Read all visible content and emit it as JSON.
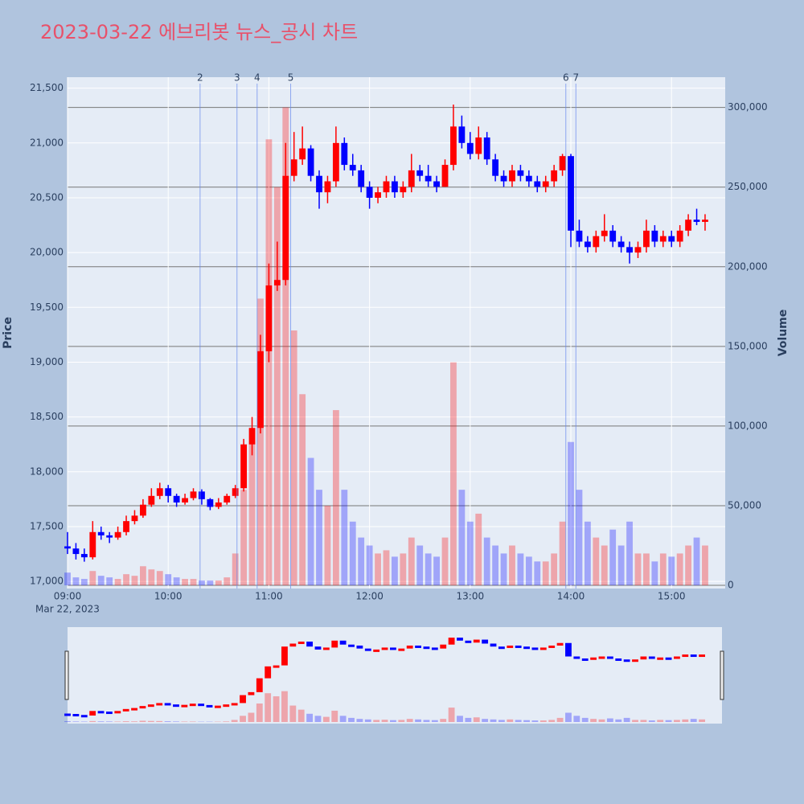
{
  "chart_data": {
    "type": "candlestick",
    "title": "2023-03-22 에브리봇 뉴스_공시 차트",
    "ylabel": "Price",
    "y2label": "Volume",
    "x_date_label": "Mar 22, 2023",
    "increasing_color": "#ff0000",
    "decreasing_color": "#0000ff",
    "xlim": [
      "09:00",
      "15:32"
    ],
    "xticks": [
      "09:00",
      "10:00",
      "11:00",
      "12:00",
      "13:00",
      "14:00",
      "15:00"
    ],
    "ylim": [
      16935,
      21600
    ],
    "yticks": [
      {
        "value": 17000,
        "label": "17,000"
      },
      {
        "value": 17500,
        "label": "17,500"
      },
      {
        "value": 18000,
        "label": "18,000"
      },
      {
        "value": 18500,
        "label": "18,500"
      },
      {
        "value": 19000,
        "label": "19,000"
      },
      {
        "value": 19500,
        "label": "19,500"
      },
      {
        "value": 20000,
        "label": "20,000"
      },
      {
        "value": 20500,
        "label": "20,500"
      },
      {
        "value": 21000,
        "label": "21,000"
      },
      {
        "value": 21500,
        "label": "21,500"
      }
    ],
    "y2lim": [
      -2000,
      319000
    ],
    "y2ticks": [
      0,
      {
        "value": 50000,
        "label": "50,000"
      },
      {
        "value": 100000,
        "label": "100,000"
      },
      {
        "value": 150000,
        "label": "150,000"
      },
      {
        "value": 200000,
        "label": "200,000"
      },
      {
        "value": 250000,
        "label": "250,000"
      },
      {
        "value": 300000,
        "label": "300,000"
      }
    ],
    "events": [
      {
        "x": "10:19",
        "label": "2"
      },
      {
        "x": "10:41",
        "label": "3"
      },
      {
        "x": "10:53",
        "label": "4"
      },
      {
        "x": "11:13",
        "label": "5"
      },
      {
        "x": "13:57",
        "label": "6"
      },
      {
        "x": "14:03",
        "label": "7"
      }
    ],
    "x": [
      "09:00",
      "09:05",
      "09:10",
      "09:15",
      "09:20",
      "09:25",
      "09:30",
      "09:35",
      "09:40",
      "09:45",
      "09:50",
      "09:55",
      "10:00",
      "10:05",
      "10:10",
      "10:15",
      "10:20",
      "10:25",
      "10:30",
      "10:35",
      "10:40",
      "10:45",
      "10:50",
      "10:55",
      "11:00",
      "11:05",
      "11:10",
      "11:15",
      "11:20",
      "11:25",
      "11:30",
      "11:35",
      "11:40",
      "11:45",
      "11:50",
      "11:55",
      "12:00",
      "12:05",
      "12:10",
      "12:15",
      "12:20",
      "12:25",
      "12:30",
      "12:35",
      "12:40",
      "12:45",
      "12:50",
      "12:55",
      "13:00",
      "13:05",
      "13:10",
      "13:15",
      "13:20",
      "13:25",
      "13:30",
      "13:35",
      "13:40",
      "13:45",
      "13:50",
      "13:55",
      "14:00",
      "14:05",
      "14:10",
      "14:15",
      "14:20",
      "14:25",
      "14:30",
      "14:35",
      "14:40",
      "14:45",
      "14:50",
      "14:55",
      "15:00",
      "15:05",
      "15:10",
      "15:15",
      "15:20"
    ],
    "open": [
      17320,
      17300,
      17250,
      17220,
      17450,
      17420,
      17400,
      17450,
      17550,
      17600,
      17700,
      17780,
      17850,
      17780,
      17720,
      17760,
      17820,
      17750,
      17680,
      17720,
      17780,
      17850,
      18250,
      18400,
      19100,
      19700,
      19750,
      20700,
      20850,
      20950,
      20700,
      20550,
      20650,
      21000,
      20800,
      20750,
      20600,
      20500,
      20550,
      20650,
      20550,
      20600,
      20750,
      20700,
      20650,
      20600,
      20800,
      21150,
      21000,
      20900,
      21050,
      20850,
      20700,
      20650,
      20750,
      20700,
      20650,
      20600,
      20650,
      20750,
      20880,
      20200,
      20100,
      20050,
      20150,
      20200,
      20100,
      20050,
      20000,
      20050,
      20200,
      20100,
      20150,
      20100,
      20200,
      20300,
      20280
    ],
    "high": [
      17450,
      17350,
      17300,
      17550,
      17500,
      17450,
      17500,
      17600,
      17650,
      17750,
      17850,
      17900,
      17880,
      17800,
      17800,
      17850,
      17840,
      17760,
      17760,
      17800,
      17880,
      18300,
      18500,
      19250,
      19900,
      20100,
      21000,
      21100,
      21150,
      20980,
      20750,
      20700,
      21150,
      21050,
      20900,
      20800,
      20650,
      20600,
      20700,
      20700,
      20650,
      20900,
      20800,
      20800,
      20700,
      20850,
      21350,
      21250,
      21100,
      21150,
      21100,
      20900,
      20750,
      20800,
      20800,
      20750,
      20700,
      20700,
      20800,
      20900,
      20900,
      20300,
      20150,
      20200,
      20350,
      20250,
      20150,
      20100,
      20100,
      20300,
      20250,
      20200,
      20200,
      20250,
      20350,
      20400,
      20350
    ],
    "low": [
      17250,
      17200,
      17180,
      17200,
      17380,
      17350,
      17380,
      17420,
      17520,
      17580,
      17680,
      17750,
      17720,
      17680,
      17700,
      17740,
      17700,
      17650,
      17660,
      17700,
      17760,
      17820,
      18150,
      18350,
      19000,
      19650,
      19700,
      20650,
      20800,
      20650,
      20400,
      20450,
      20600,
      20750,
      20700,
      20550,
      20400,
      20450,
      20500,
      20500,
      20500,
      20550,
      20650,
      20600,
      20550,
      20600,
      20750,
      20950,
      20850,
      20850,
      20800,
      20650,
      20600,
      20600,
      20650,
      20600,
      20550,
      20550,
      20600,
      20700,
      20050,
      20050,
      20000,
      20000,
      20100,
      20050,
      20000,
      19900,
      19950,
      20000,
      20050,
      20050,
      20050,
      20050,
      20150,
      20250,
      20200
    ],
    "close": [
      17300,
      17250,
      17220,
      17450,
      17420,
      17400,
      17450,
      17550,
      17600,
      17700,
      17780,
      17850,
      17780,
      17720,
      17760,
      17820,
      17750,
      17680,
      17720,
      17780,
      17850,
      18250,
      18400,
      19100,
      19700,
      19750,
      20700,
      20850,
      20950,
      20700,
      20550,
      20650,
      21000,
      20800,
      20750,
      20600,
      20500,
      20550,
      20650,
      20550,
      20600,
      20750,
      20700,
      20650,
      20600,
      20800,
      21150,
      21000,
      20900,
      21050,
      20850,
      20700,
      20650,
      20750,
      20700,
      20650,
      20600,
      20650,
      20750,
      20880,
      20200,
      20100,
      20050,
      20150,
      20200,
      20100,
      20050,
      20000,
      20050,
      20200,
      20100,
      20150,
      20100,
      20200,
      20300,
      20280,
      20300
    ],
    "volume": [
      8000,
      5000,
      4000,
      9000,
      6000,
      5000,
      4000,
      7000,
      6000,
      12000,
      10000,
      9000,
      7000,
      5000,
      4000,
      4000,
      3000,
      3000,
      3000,
      5000,
      20000,
      60000,
      90000,
      180000,
      280000,
      250000,
      300000,
      160000,
      120000,
      80000,
      60000,
      50000,
      110000,
      60000,
      40000,
      30000,
      25000,
      20000,
      22000,
      18000,
      20000,
      30000,
      25000,
      20000,
      18000,
      30000,
      140000,
      60000,
      40000,
      45000,
      30000,
      25000,
      20000,
      25000,
      20000,
      18000,
      15000,
      15000,
      20000,
      40000,
      90000,
      60000,
      40000,
      30000,
      25000,
      35000,
      25000,
      40000,
      20000,
      20000,
      15000,
      20000,
      18000,
      20000,
      25000,
      30000,
      25000
    ]
  }
}
